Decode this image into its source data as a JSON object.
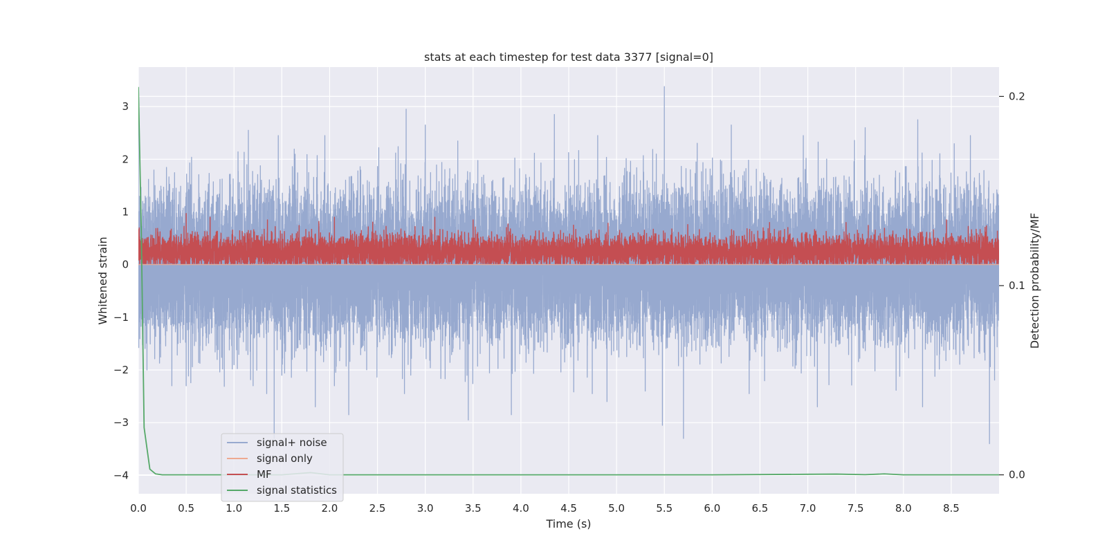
{
  "chart_data": {
    "type": "line",
    "title": "stats at each timestep for test data 3377 [signal=0]",
    "xlabel": "Time (s)",
    "ylabel": "Whitened strain",
    "ylabel_right": "Detection probability/MF",
    "xlim": [
      0,
      9.0
    ],
    "ylim": [
      -4.35,
      3.75
    ],
    "ylim_right": [
      -0.01,
      0.2155
    ],
    "x_ticks": [
      "0.0",
      "0.5",
      "1.0",
      "1.5",
      "2.0",
      "2.5",
      "3.0",
      "3.5",
      "4.0",
      "4.5",
      "5.0",
      "5.5",
      "6.0",
      "6.5",
      "7.0",
      "7.5",
      "8.0",
      "8.5"
    ],
    "y_ticks": [
      "−4",
      "−3",
      "−2",
      "−1",
      "0",
      "1",
      "2",
      "3"
    ],
    "y_right_ticks": [
      "0.0",
      "0.1",
      "0.2"
    ],
    "grid": true,
    "legend_position": "lower-left",
    "colors": {
      "background": "#eaeaf2",
      "grid": "#ffffff",
      "signal_noise": "#97a9cf",
      "signal_only": "#eea990",
      "mf": "#c44e52",
      "signal_statistics": "#55a868"
    },
    "series": [
      {
        "name": "signal+ noise",
        "axis": "left",
        "kind": "noise",
        "sample_rate_hz": 2048,
        "duration_s": 9.0,
        "sigma": 1.0,
        "spikes": [
          {
            "x": 0.0,
            "y": 3.3
          },
          {
            "x": 0.05,
            "y": -1.6
          },
          {
            "x": 0.09,
            "y": -2.0
          },
          {
            "x": 0.35,
            "y": -2.3
          },
          {
            "x": 0.5,
            "y": -2.3
          },
          {
            "x": 1.0,
            "y": -1.9
          },
          {
            "x": 1.15,
            "y": 2.55
          },
          {
            "x": 1.2,
            "y": -2.3
          },
          {
            "x": 1.42,
            "y": -3.3
          },
          {
            "x": 1.5,
            "y": -2.1
          },
          {
            "x": 1.8,
            "y": -0.45
          },
          {
            "x": 1.85,
            "y": -2.7
          },
          {
            "x": 1.95,
            "y": 2.45
          },
          {
            "x": 2.05,
            "y": -2.3
          },
          {
            "x": 2.2,
            "y": -2.85
          },
          {
            "x": 2.8,
            "y": 2.95
          },
          {
            "x": 3.0,
            "y": 2.65
          },
          {
            "x": 3.45,
            "y": -2.95
          },
          {
            "x": 3.9,
            "y": -2.85
          },
          {
            "x": 4.35,
            "y": 2.85
          },
          {
            "x": 4.55,
            "y": -0.45
          },
          {
            "x": 4.9,
            "y": -2.6
          },
          {
            "x": 5.3,
            "y": -2.4
          },
          {
            "x": 5.48,
            "y": -3.05
          },
          {
            "x": 5.5,
            "y": 3.38
          },
          {
            "x": 5.7,
            "y": -3.3
          },
          {
            "x": 6.2,
            "y": 2.65
          },
          {
            "x": 7.1,
            "y": -2.7
          },
          {
            "x": 7.6,
            "y": 2.6
          },
          {
            "x": 8.15,
            "y": 2.75
          },
          {
            "x": 8.2,
            "y": -2.7
          },
          {
            "x": 8.7,
            "y": 2.45
          },
          {
            "x": 8.9,
            "y": -3.4
          }
        ]
      },
      {
        "name": "signal only",
        "axis": "left",
        "kind": "constant",
        "y": 0.0
      },
      {
        "name": "MF",
        "axis": "left",
        "kind": "noise",
        "sample_rate_hz": 1024,
        "duration_s": 9.0,
        "mean": 0.25,
        "band": [
          0.0,
          0.98
        ],
        "spikes": [
          {
            "x": 0.5,
            "y": 0.97
          },
          {
            "x": 0.75,
            "y": 0.9
          },
          {
            "x": 1.35,
            "y": 0.85
          },
          {
            "x": 2.05,
            "y": 0.9
          },
          {
            "x": 3.1,
            "y": 0.9
          },
          {
            "x": 3.5,
            "y": 0.85
          },
          {
            "x": 4.55,
            "y": 0.75
          },
          {
            "x": 6.6,
            "y": 0.8
          },
          {
            "x": 7.4,
            "y": 0.8
          },
          {
            "x": 8.45,
            "y": 0.85
          }
        ]
      },
      {
        "name": "signal statistics",
        "axis": "right",
        "kind": "curve",
        "points": [
          [
            0.0,
            0.205
          ],
          [
            0.03,
            0.13
          ],
          [
            0.06,
            0.025
          ],
          [
            0.12,
            0.003
          ],
          [
            0.18,
            0.0005
          ],
          [
            0.25,
            0.0
          ],
          [
            0.5,
            0.0
          ],
          [
            1.0,
            0.0
          ],
          [
            1.5,
            0.0
          ],
          [
            1.8,
            0.0012
          ],
          [
            2.0,
            0.0
          ],
          [
            3.0,
            0.0
          ],
          [
            4.0,
            0.0
          ],
          [
            5.0,
            0.0
          ],
          [
            6.0,
            0.0
          ],
          [
            7.0,
            0.0003
          ],
          [
            7.3,
            0.0004
          ],
          [
            7.6,
            0.0001
          ],
          [
            7.8,
            0.0005
          ],
          [
            8.0,
            0.0
          ],
          [
            9.0,
            0.0
          ]
        ]
      }
    ]
  }
}
